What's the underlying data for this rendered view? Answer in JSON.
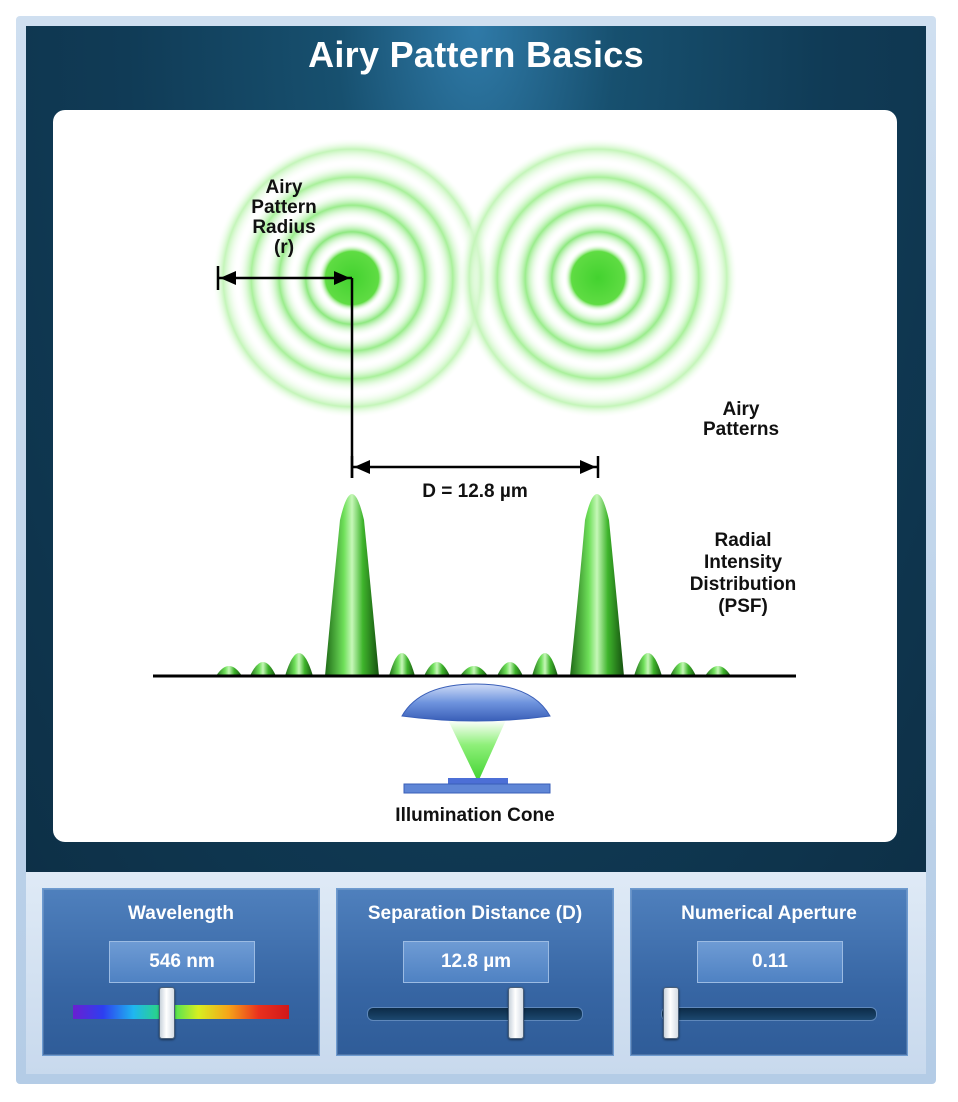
{
  "app": {
    "title": "Airy Pattern Basics"
  },
  "diagram": {
    "radius_label": [
      "Airy",
      "Pattern",
      "Radius",
      "(r)"
    ],
    "separation_label": "D = 12.8 µm",
    "airy_patterns_label": [
      "Airy",
      "Patterns"
    ],
    "psf_label": [
      "Radial",
      "Intensity",
      "Distribution",
      "(PSF)"
    ],
    "cone_label": "Illumination Cone",
    "colors": {
      "pattern": "#5fdc43",
      "peak": "#2fa11f",
      "lens": "#5f86d6"
    }
  },
  "controls": {
    "wavelength": {
      "title": "Wavelength",
      "value": "546 nm",
      "fraction": 0.42
    },
    "separation": {
      "title": "Separation Distance (D)",
      "value": "12.8 µm",
      "fraction": 0.7
    },
    "aperture": {
      "title": "Numerical Aperture",
      "value": "0.11",
      "fraction": 0.0
    }
  }
}
